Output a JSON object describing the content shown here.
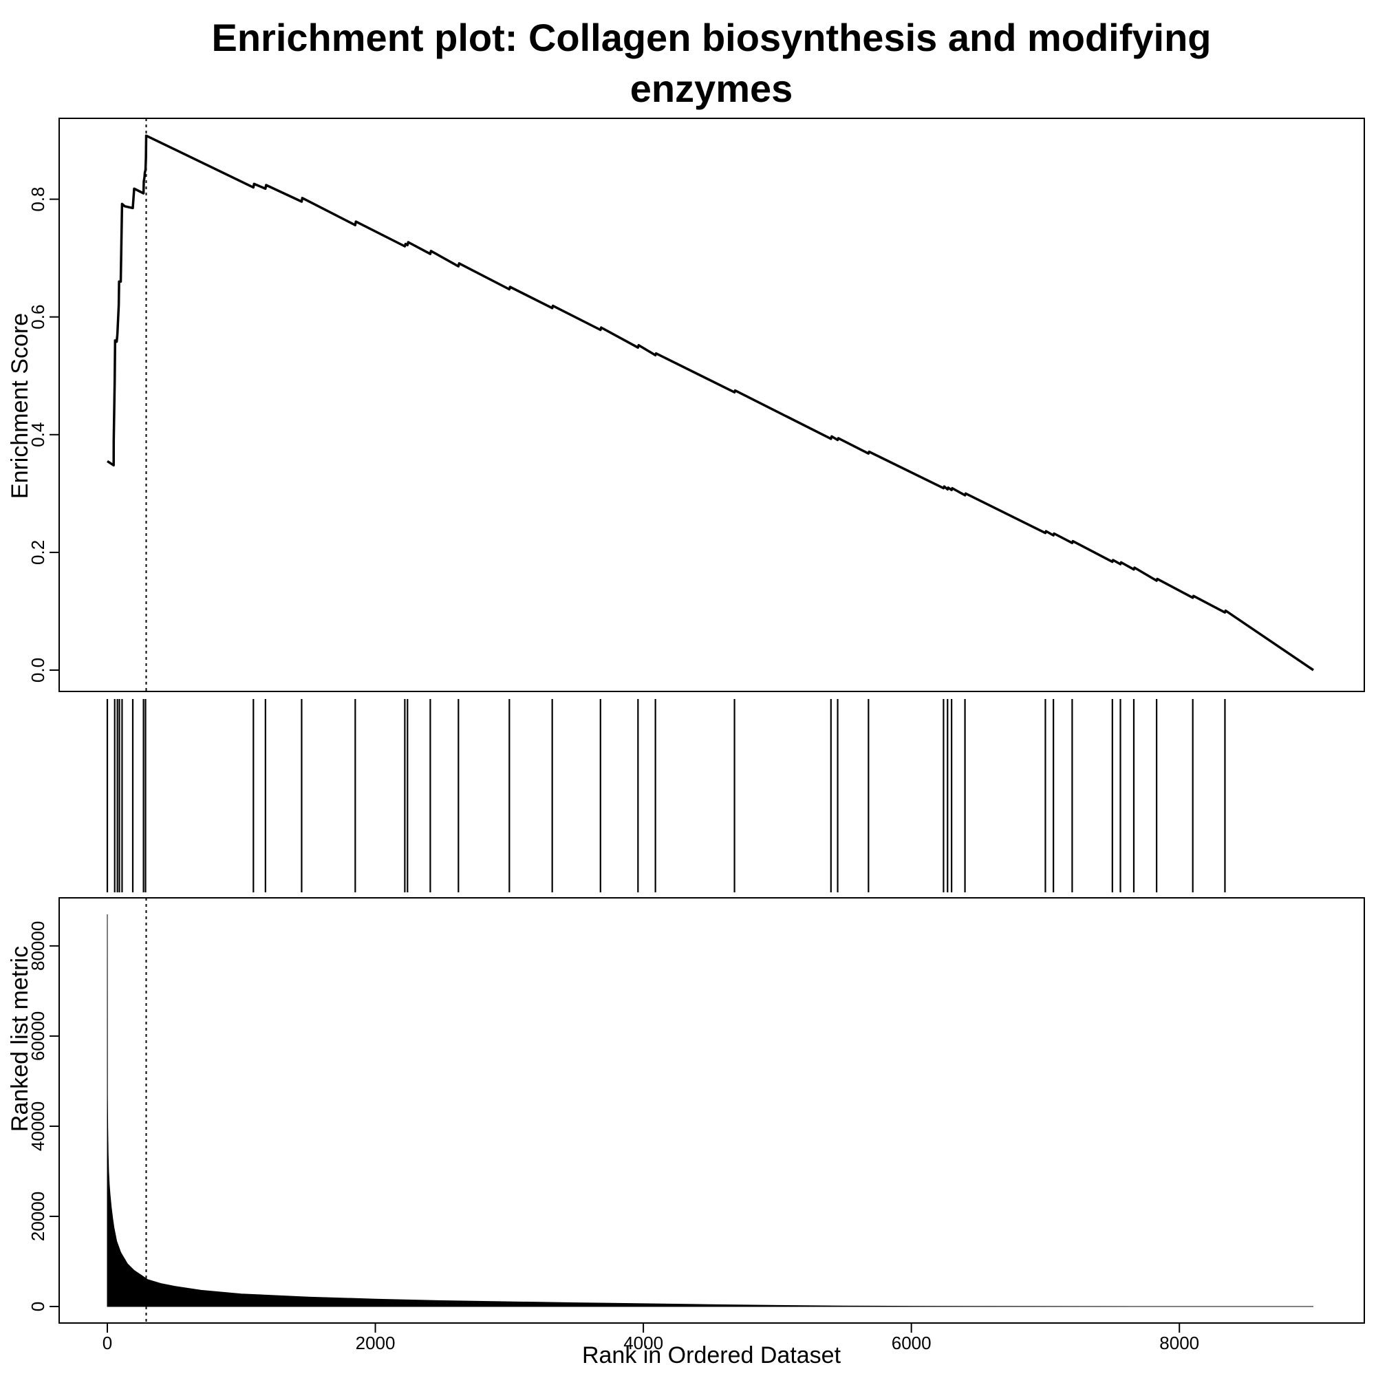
{
  "title_line1": "Enrichment plot: Collagen biosynthesis and modifying",
  "title_line2": "enzymes",
  "chart_data": [
    {
      "type": "line",
      "panel": "enrichment-score",
      "ylabel": "Enrichment Score",
      "xlim": [
        0,
        9000
      ],
      "ylim": [
        0,
        0.9
      ],
      "y_ticks": [
        "0.0",
        "0.2",
        "0.4",
        "0.6",
        "0.8"
      ],
      "peak_rank": 290,
      "series": [
        {
          "x": [
            0,
            47,
            48,
            55,
            58,
            70,
            75,
            85,
            88,
            100,
            110,
            120,
            130,
            190,
            200,
            270,
            272,
            278,
            280,
            285,
            288,
            290,
            1090,
            1095,
            1180,
            1185,
            1450,
            1455,
            1850,
            1855,
            2220,
            2225,
            2240,
            2245,
            2410,
            2415,
            2620,
            2625,
            3000,
            3005,
            3320,
            3325,
            3680,
            3685,
            3960,
            3965,
            4090,
            4095,
            4680,
            4685,
            5400,
            5405,
            5450,
            5455,
            5680,
            5685,
            6240,
            6245,
            6270,
            6275,
            6300,
            6305,
            6400,
            6405,
            7000,
            7005,
            7060,
            7065,
            7200,
            7205,
            7500,
            7505,
            7560,
            7565,
            7660,
            7665,
            7830,
            7835,
            8100,
            8105,
            8340,
            8345,
            9000
          ],
          "y": [
            0.355,
            0.348,
            0.39,
            0.49,
            0.56,
            0.558,
            0.57,
            0.62,
            0.66,
            0.66,
            0.792,
            0.79,
            0.788,
            0.785,
            0.818,
            0.81,
            0.83,
            0.838,
            0.845,
            0.85,
            0.87,
            0.908,
            0.82,
            0.826,
            0.818,
            0.824,
            0.796,
            0.802,
            0.756,
            0.762,
            0.72,
            0.724,
            0.722,
            0.727,
            0.707,
            0.712,
            0.686,
            0.691,
            0.647,
            0.651,
            0.615,
            0.619,
            0.578,
            0.582,
            0.548,
            0.552,
            0.535,
            0.538,
            0.472,
            0.475,
            0.393,
            0.397,
            0.391,
            0.394,
            0.368,
            0.371,
            0.309,
            0.312,
            0.307,
            0.31,
            0.306,
            0.309,
            0.297,
            0.3,
            0.233,
            0.236,
            0.229,
            0.232,
            0.216,
            0.219,
            0.184,
            0.187,
            0.18,
            0.183,
            0.171,
            0.174,
            0.152,
            0.155,
            0.123,
            0.126,
            0.098,
            0.101,
            0.0
          ]
        }
      ]
    },
    {
      "type": "barcode",
      "panel": "gene-hits",
      "positions": [
        0,
        55,
        75,
        90,
        110,
        190,
        270,
        285,
        1090,
        1180,
        1450,
        1850,
        2220,
        2240,
        2410,
        2620,
        3000,
        3320,
        3680,
        3960,
        4090,
        4680,
        5400,
        5450,
        5680,
        6240,
        6270,
        6300,
        6400,
        7000,
        7060,
        7200,
        7500,
        7560,
        7660,
        7830,
        8100,
        8340
      ]
    },
    {
      "type": "area",
      "panel": "ranked-list",
      "xlabel": "Rank in Ordered Dataset",
      "ylabel": "Ranked list metric",
      "xlim": [
        0,
        9000
      ],
      "ylim": [
        0,
        87000
      ],
      "x_ticks": [
        "0",
        "2000",
        "4000",
        "6000",
        "8000"
      ],
      "y_ticks": [
        "0",
        "20000",
        "40000",
        "60000",
        "80000"
      ],
      "x": [
        0,
        1,
        3,
        6,
        10,
        15,
        20,
        30,
        40,
        50,
        70,
        100,
        150,
        200,
        250,
        300,
        400,
        500,
        700,
        1000,
        1500,
        2000,
        2500,
        3000,
        3500,
        4000,
        4500,
        5000,
        5500,
        6000,
        7000,
        8000,
        9000
      ],
      "values": [
        87000,
        47000,
        40000,
        34000,
        30000,
        27000,
        25000,
        22000,
        19500,
        17500,
        14500,
        12000,
        9500,
        8000,
        7000,
        6000,
        5100,
        4500,
        3600,
        2800,
        2100,
        1650,
        1300,
        1050,
        820,
        620,
        420,
        250,
        120,
        60,
        20,
        5,
        0
      ]
    }
  ]
}
